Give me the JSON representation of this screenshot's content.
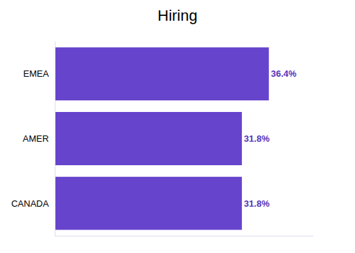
{
  "chart_data": {
    "type": "bar",
    "orientation": "horizontal",
    "title": "Hiring",
    "categories": [
      "CANADA",
      "AMER",
      "EMEA"
    ],
    "values": [
      31.8,
      31.8,
      36.4
    ],
    "value_labels": [
      "31.8%",
      "31.8%",
      "36.4%"
    ],
    "data_labels": true,
    "color": "#6644cc",
    "xlim": [
      0,
      44
    ],
    "grid": false,
    "tick_labels": "y"
  }
}
